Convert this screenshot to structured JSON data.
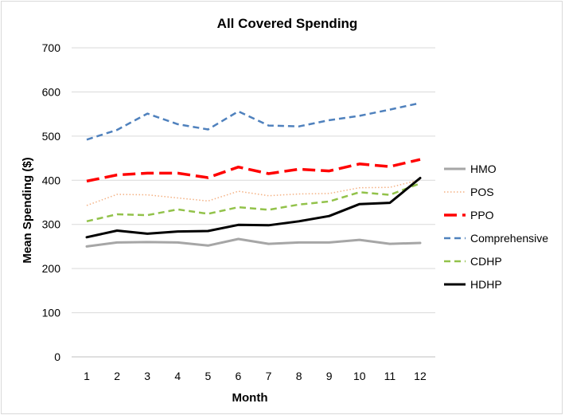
{
  "chart_data": {
    "type": "line",
    "title": "All Covered Spending",
    "xlabel": "Month",
    "ylabel": "Mean Spending ($)",
    "x": [
      1,
      2,
      3,
      4,
      5,
      6,
      7,
      8,
      9,
      10,
      11,
      12
    ],
    "ylim": [
      0,
      700
    ],
    "yticks": [
      0,
      100,
      200,
      300,
      400,
      500,
      600,
      700
    ],
    "grid": true,
    "legend_position": "right",
    "series": [
      {
        "name": "HMO",
        "color": "#a6a6a6",
        "dash": "solid",
        "values": [
          250,
          259,
          260,
          259,
          252,
          267,
          256,
          259,
          259,
          265,
          256,
          258
        ]
      },
      {
        "name": "POS",
        "color": "#f4b183",
        "dash": "dotted",
        "values": [
          343,
          368,
          367,
          360,
          353,
          375,
          365,
          369,
          370,
          383,
          384,
          401
        ]
      },
      {
        "name": "PPO",
        "color": "#ff0000",
        "dash": "long-dash",
        "values": [
          398,
          412,
          416,
          416,
          406,
          430,
          415,
          425,
          421,
          437,
          431,
          447
        ]
      },
      {
        "name": "Comprehensive",
        "color": "#4f81bd",
        "dash": "dash",
        "values": [
          492,
          514,
          551,
          527,
          515,
          556,
          524,
          522,
          536,
          546,
          560,
          575
        ]
      },
      {
        "name": "CDHP",
        "color": "#92c24a",
        "dash": "dash",
        "values": [
          307,
          323,
          321,
          334,
          324,
          339,
          333,
          345,
          352,
          373,
          367,
          393
        ]
      },
      {
        "name": "HDHP",
        "color": "#000000",
        "dash": "solid",
        "values": [
          271,
          286,
          279,
          284,
          285,
          299,
          298,
          307,
          319,
          346,
          349,
          405
        ]
      }
    ]
  }
}
